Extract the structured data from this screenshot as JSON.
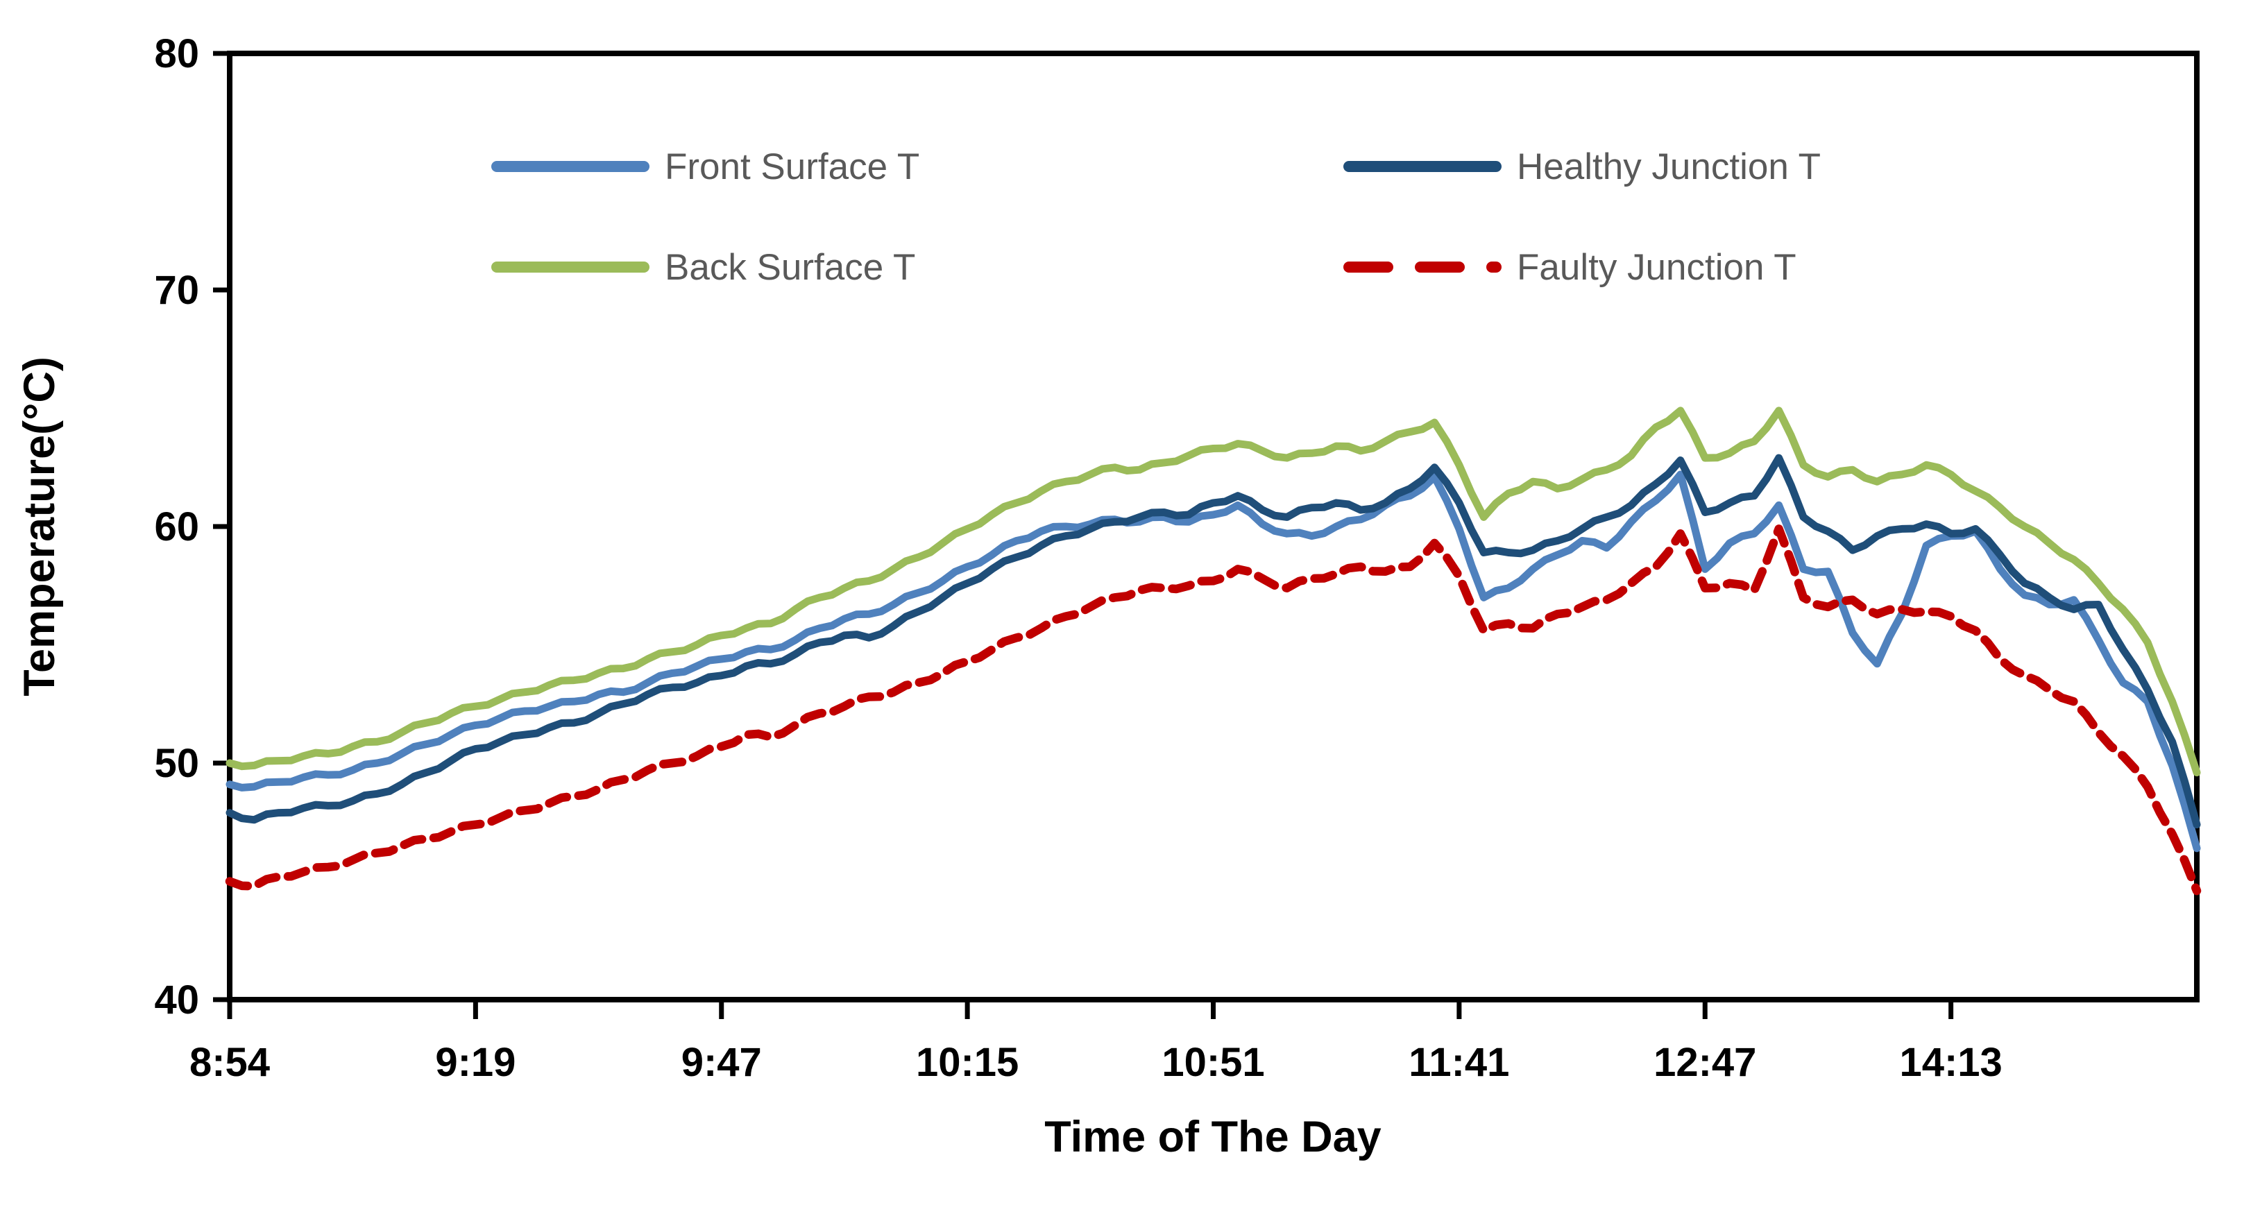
{
  "chart_data": {
    "type": "line",
    "title": "",
    "xlabel": "Time of The Day",
    "ylabel": "Temperature(°C)",
    "x_tick_labels": [
      "8:54",
      "9:19",
      "9:47",
      "10:15",
      "10:51",
      "11:41",
      "12:47",
      "14:13"
    ],
    "ylim": [
      40,
      80
    ],
    "y_ticks": [
      40,
      50,
      60,
      70,
      80
    ],
    "x_unit_range": [
      0,
      8
    ],
    "sample_step": 0.1,
    "grid": "off",
    "legend_position": "inside-top",
    "series": [
      {
        "name": "Front Surface T",
        "color": "#4F81BD",
        "line_style": "solid",
        "values": [
          49.1,
          49.0,
          49.2,
          49.4,
          49.5,
          49.7,
          50.0,
          50.4,
          50.8,
          51.2,
          51.6,
          51.9,
          52.2,
          52.4,
          52.6,
          52.9,
          53.0,
          53.4,
          53.8,
          54.1,
          54.4,
          54.7,
          54.8,
          55.2,
          55.7,
          56.1,
          56.3,
          56.7,
          57.2,
          57.7,
          58.3,
          58.8,
          59.4,
          59.8,
          60.0,
          60.1,
          60.3,
          60.2,
          60.4,
          60.2,
          60.5,
          60.9,
          60.1,
          59.7,
          59.6,
          60.0,
          60.3,
          60.9,
          61.3,
          62.1,
          59.9,
          57.0,
          57.4,
          58.2,
          58.8,
          59.4,
          59.1,
          60.2,
          61.1,
          62.2,
          58.2,
          59.3,
          59.7,
          60.9,
          58.2,
          58.1,
          55.5,
          54.2,
          56.3,
          59.2,
          59.6,
          59.8,
          58.2,
          57.1,
          56.7,
          56.9,
          55.2,
          53.4,
          52.6,
          49.9,
          46.4
        ]
      },
      {
        "name": "Healthy Junction T",
        "color": "#1F4E79",
        "line_style": "solid",
        "values": [
          47.9,
          47.6,
          47.9,
          48.1,
          48.2,
          48.4,
          48.7,
          49.1,
          49.6,
          50.1,
          50.6,
          50.9,
          51.2,
          51.5,
          51.7,
          52.1,
          52.5,
          52.9,
          53.2,
          53.4,
          53.7,
          54.1,
          54.2,
          54.6,
          55.1,
          55.4,
          55.3,
          55.8,
          56.4,
          57.0,
          57.6,
          58.2,
          58.7,
          59.2,
          59.6,
          59.9,
          60.2,
          60.4,
          60.6,
          60.5,
          61.0,
          61.3,
          60.7,
          60.4,
          60.8,
          61.0,
          60.7,
          61.0,
          61.6,
          62.5,
          61.0,
          58.9,
          58.9,
          59.0,
          59.4,
          59.9,
          60.4,
          60.9,
          61.8,
          62.8,
          60.6,
          61.0,
          61.3,
          62.9,
          60.4,
          59.8,
          59.0,
          59.6,
          59.9,
          60.1,
          59.7,
          59.9,
          58.8,
          57.6,
          57.0,
          56.5,
          56.7,
          54.8,
          53.1,
          50.9,
          47.4
        ]
      },
      {
        "name": "Back Surface T",
        "color": "#9BBB59",
        "line_style": "solid",
        "values": [
          50.0,
          49.9,
          50.1,
          50.3,
          50.4,
          50.7,
          50.9,
          51.3,
          51.7,
          52.1,
          52.4,
          52.7,
          53.0,
          53.3,
          53.5,
          53.8,
          54.0,
          54.4,
          54.7,
          55.0,
          55.4,
          55.7,
          55.9,
          56.5,
          57.0,
          57.4,
          57.7,
          58.2,
          58.7,
          59.3,
          59.9,
          60.5,
          61.0,
          61.5,
          61.9,
          62.2,
          62.5,
          62.4,
          62.7,
          63.0,
          63.3,
          63.5,
          63.2,
          62.9,
          63.1,
          63.4,
          63.2,
          63.6,
          64.0,
          64.4,
          62.6,
          60.4,
          61.4,
          61.9,
          61.6,
          62.0,
          62.4,
          63.0,
          64.2,
          64.9,
          62.9,
          63.1,
          63.6,
          64.9,
          62.6,
          62.1,
          62.4,
          61.9,
          62.2,
          62.6,
          62.2,
          61.5,
          60.8,
          60.0,
          59.3,
          58.6,
          57.6,
          56.5,
          55.1,
          52.6,
          49.6
        ]
      },
      {
        "name": "Faulty Junction T",
        "color": "#C00000",
        "line_style": "dashed",
        "values": [
          45.0,
          44.8,
          45.2,
          45.4,
          45.6,
          45.9,
          46.2,
          46.5,
          46.8,
          47.1,
          47.4,
          47.7,
          48.0,
          48.3,
          48.6,
          48.9,
          49.3,
          49.7,
          50.0,
          50.3,
          50.7,
          51.2,
          51.1,
          51.6,
          52.1,
          52.4,
          52.8,
          53.0,
          53.4,
          53.8,
          54.3,
          54.8,
          55.3,
          55.7,
          56.2,
          56.6,
          57.0,
          57.3,
          57.4,
          57.5,
          57.7,
          58.2,
          57.8,
          57.4,
          57.8,
          58.0,
          58.3,
          58.1,
          58.3,
          59.3,
          57.9,
          55.6,
          55.9,
          55.7,
          56.3,
          56.6,
          56.9,
          57.6,
          58.3,
          59.7,
          57.4,
          57.6,
          57.3,
          59.9,
          57.0,
          56.6,
          56.9,
          56.3,
          56.5,
          56.4,
          56.2,
          55.6,
          54.4,
          53.7,
          53.1,
          52.6,
          51.3,
          50.3,
          49.0,
          47.0,
          44.6
        ]
      }
    ]
  },
  "legend": {
    "row1_col1": "Front Surface T",
    "row1_col2": "Healthy Junction T",
    "row2_col1": "Back Surface T",
    "row2_col2": "Faulty Junction T"
  }
}
